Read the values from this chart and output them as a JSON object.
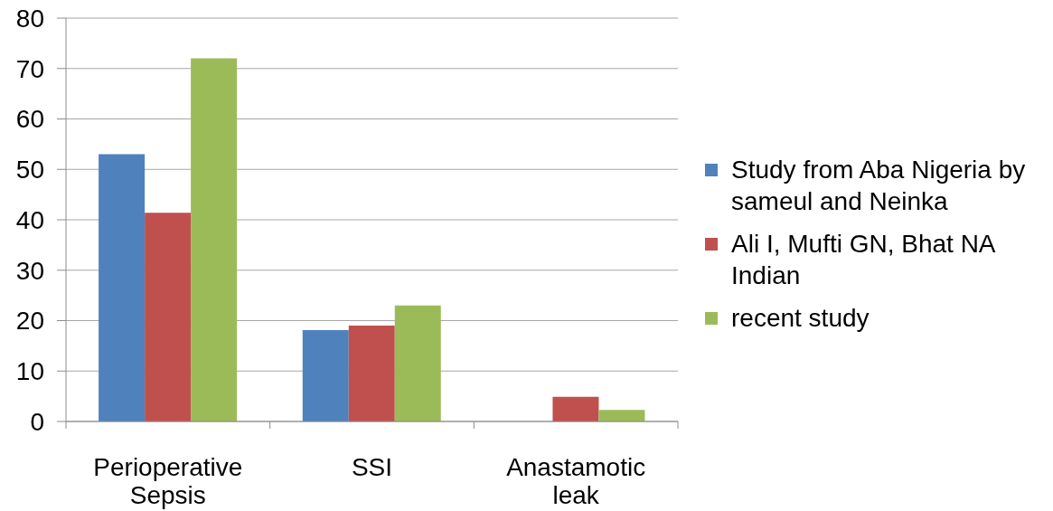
{
  "chart_data": {
    "type": "bar",
    "categories": [
      "Perioperative Sepsis",
      "SSI",
      "Anastamotic leak"
    ],
    "series": [
      {
        "name": "Study from Aba Nigeria by sameul and Neinka",
        "color": "#4f81bd",
        "values": [
          53,
          18.1,
          null
        ]
      },
      {
        "name": "Ali I, Mufti GN, Bhat NA Indian",
        "color": "#c0504d",
        "values": [
          41.4,
          19,
          4.9
        ]
      },
      {
        "name": "recent study",
        "color": "#9bbb59",
        "values": [
          72,
          23,
          2.3
        ]
      }
    ],
    "ylim": [
      0,
      80
    ],
    "yticks": [
      0,
      10,
      20,
      30,
      40,
      50,
      60,
      70,
      80
    ],
    "grid": "y",
    "legend": "right"
  }
}
